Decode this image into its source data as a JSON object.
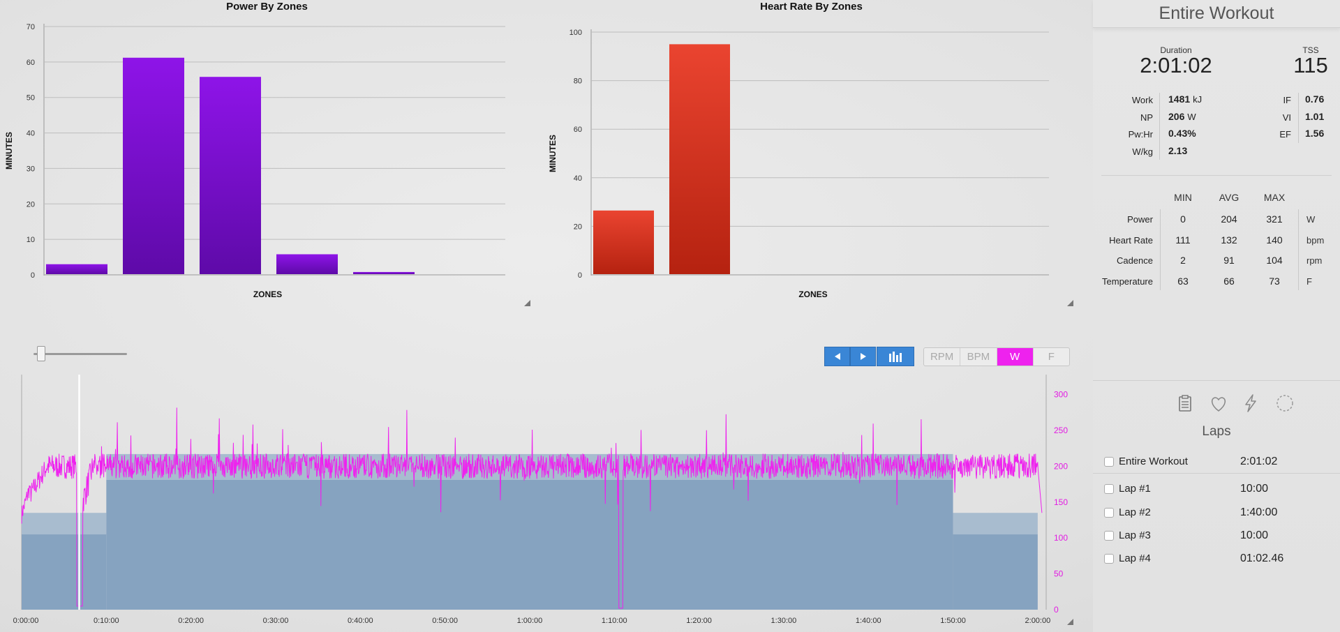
{
  "power_chart": {
    "title": "Power By Zones",
    "xlabel": "ZONES",
    "ylabel": "MINUTES",
    "yticks": [
      "0",
      "10",
      "20",
      "30",
      "40",
      "50",
      "60",
      "70"
    ]
  },
  "hr_chart": {
    "title": "Heart Rate By Zones",
    "xlabel": "ZONES",
    "ylabel": "MINUTES",
    "yticks": [
      "0",
      "20",
      "40",
      "60",
      "80",
      "100"
    ]
  },
  "chart_data": [
    {
      "type": "bar",
      "title": "Power By Zones",
      "xlabel": "ZONES",
      "ylabel": "MINUTES",
      "values": [
        3,
        61.2,
        55.8,
        5.8,
        0.8
      ],
      "ylim": [
        0,
        70
      ],
      "color": "#7a10d0",
      "grid": true
    },
    {
      "type": "bar",
      "title": "Heart Rate By Zones",
      "xlabel": "ZONES",
      "ylabel": "MINUTES",
      "values": [
        26.5,
        95
      ],
      "ylim": [
        0,
        100
      ],
      "color": "#d8341c",
      "grid": true
    },
    {
      "type": "area",
      "x_ticks": [
        "0:00:00",
        "0:10:00",
        "0:20:00",
        "0:30:00",
        "0:40:00",
        "0:50:00",
        "1:00:00",
        "1:10:00",
        "1:20:00",
        "1:30:00",
        "1:40:00",
        "1:50:00",
        "2:00:00"
      ],
      "y_ticks_right": [
        "0",
        "50",
        "100",
        "150",
        "200",
        "250",
        "300"
      ],
      "xlim_minutes": [
        0,
        121
      ],
      "ylim": [
        0,
        320
      ],
      "series": [
        {
          "name": "W",
          "color": "#ee22ee",
          "base_level": 200
        },
        {
          "zones": [
            {
              "start": 0,
              "end": 10,
              "low": 105,
              "high": 135
            },
            {
              "start": 10,
              "end": 110,
              "low": 181,
              "high": 217
            },
            {
              "start": 110,
              "end": 120,
              "low": 105,
              "high": 135
            }
          ]
        }
      ]
    }
  ],
  "sidebar": {
    "title": "Entire Workout",
    "duration_label": "Duration",
    "duration": "2:01:02",
    "tss_label": "TSS",
    "tss": "115",
    "left_metrics": [
      {
        "label": "Work",
        "value": "1481",
        "unit": "kJ"
      },
      {
        "label": "NP",
        "value": "206",
        "unit": "W"
      },
      {
        "label": "Pw:Hr",
        "value": "0.43%",
        "unit": ""
      },
      {
        "label": "W/kg",
        "value": "2.13",
        "unit": ""
      }
    ],
    "right_metrics": [
      {
        "label": "IF",
        "value": "0.76"
      },
      {
        "label": "VI",
        "value": "1.01"
      },
      {
        "label": "EF",
        "value": "1.56"
      }
    ],
    "table": {
      "headers": [
        "MIN",
        "AVG",
        "MAX"
      ],
      "rows": [
        {
          "label": "Power",
          "min": "0",
          "avg": "204",
          "max": "321",
          "unit": "W"
        },
        {
          "label": "Heart Rate",
          "min": "111",
          "avg": "132",
          "max": "140",
          "unit": "bpm"
        },
        {
          "label": "Cadence",
          "min": "2",
          "avg": "91",
          "max": "104",
          "unit": "rpm"
        },
        {
          "label": "Temperature",
          "min": "63",
          "avg": "66",
          "max": "73",
          "unit": "F"
        }
      ]
    },
    "laps_title": "Laps",
    "laps": [
      {
        "name": "Entire Workout",
        "time": "2:01:02"
      },
      {
        "name": "Lap #1",
        "time": "10:00"
      },
      {
        "name": "Lap #2",
        "time": "1:40:00"
      },
      {
        "name": "Lap #3",
        "time": "10:00"
      },
      {
        "name": "Lap #4",
        "time": "01:02.46"
      }
    ]
  },
  "toolbar": {
    "units": [
      "RPM",
      "BPM",
      "W",
      "F"
    ],
    "active_unit": "W",
    "zoom_slider_value": 0.04
  }
}
